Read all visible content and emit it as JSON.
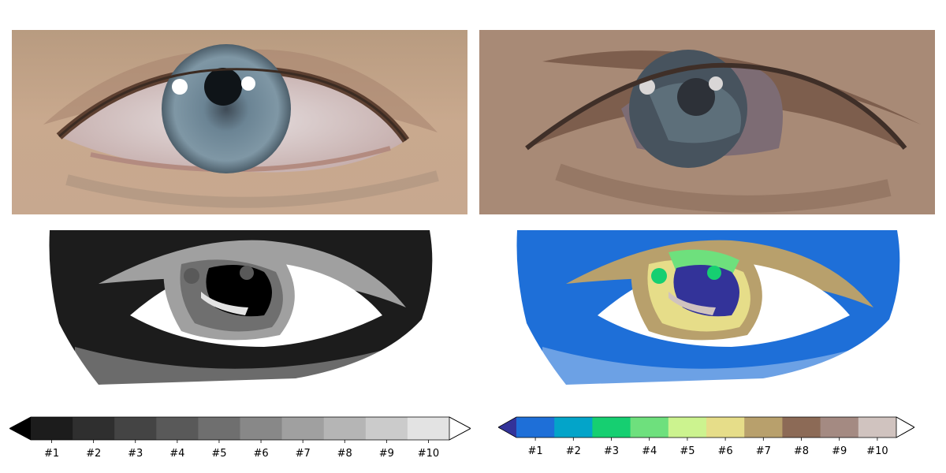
{
  "chart_data": [
    {
      "type": "image",
      "panel": "top-left",
      "content": "original eye photograph"
    },
    {
      "type": "image",
      "panel": "top-right",
      "content": "color-quantized eye photograph"
    },
    {
      "type": "contour",
      "panel": "bottom-left",
      "colormap": "gray",
      "levels": 10
    },
    {
      "type": "contour",
      "panel": "bottom-right",
      "colormap": "terrain",
      "levels": 10
    },
    {
      "type": "colorbar",
      "panel": "bottom-left-colorbar",
      "orientation": "horizontal",
      "extend": "both",
      "tick_labels": [
        "#1",
        "#2",
        "#3",
        "#4",
        "#5",
        "#6",
        "#7",
        "#8",
        "#9",
        "#10"
      ],
      "colors": [
        "#1c1c1c",
        "#2f2f2f",
        "#444444",
        "#595959",
        "#6f6f6f",
        "#888888",
        "#a0a0a0",
        "#b5b5b5",
        "#cbcbcb",
        "#e3e3e3"
      ],
      "under_color": "#000000",
      "over_color": "#ffffff"
    },
    {
      "type": "colorbar",
      "panel": "bottom-right-colorbar",
      "orientation": "horizontal",
      "extend": "both",
      "tick_labels": [
        "#1",
        "#2",
        "#3",
        "#4",
        "#5",
        "#6",
        "#7",
        "#8",
        "#9",
        "#10"
      ],
      "colors": [
        "#1e6fd8",
        "#03a4c9",
        "#16cf71",
        "#6ee07d",
        "#ccf38f",
        "#e6dd89",
        "#b8a06c",
        "#8c6a56",
        "#a48a82",
        "#d0c3bf"
      ],
      "under_color": "#333399",
      "over_color": "#ffffff"
    }
  ]
}
